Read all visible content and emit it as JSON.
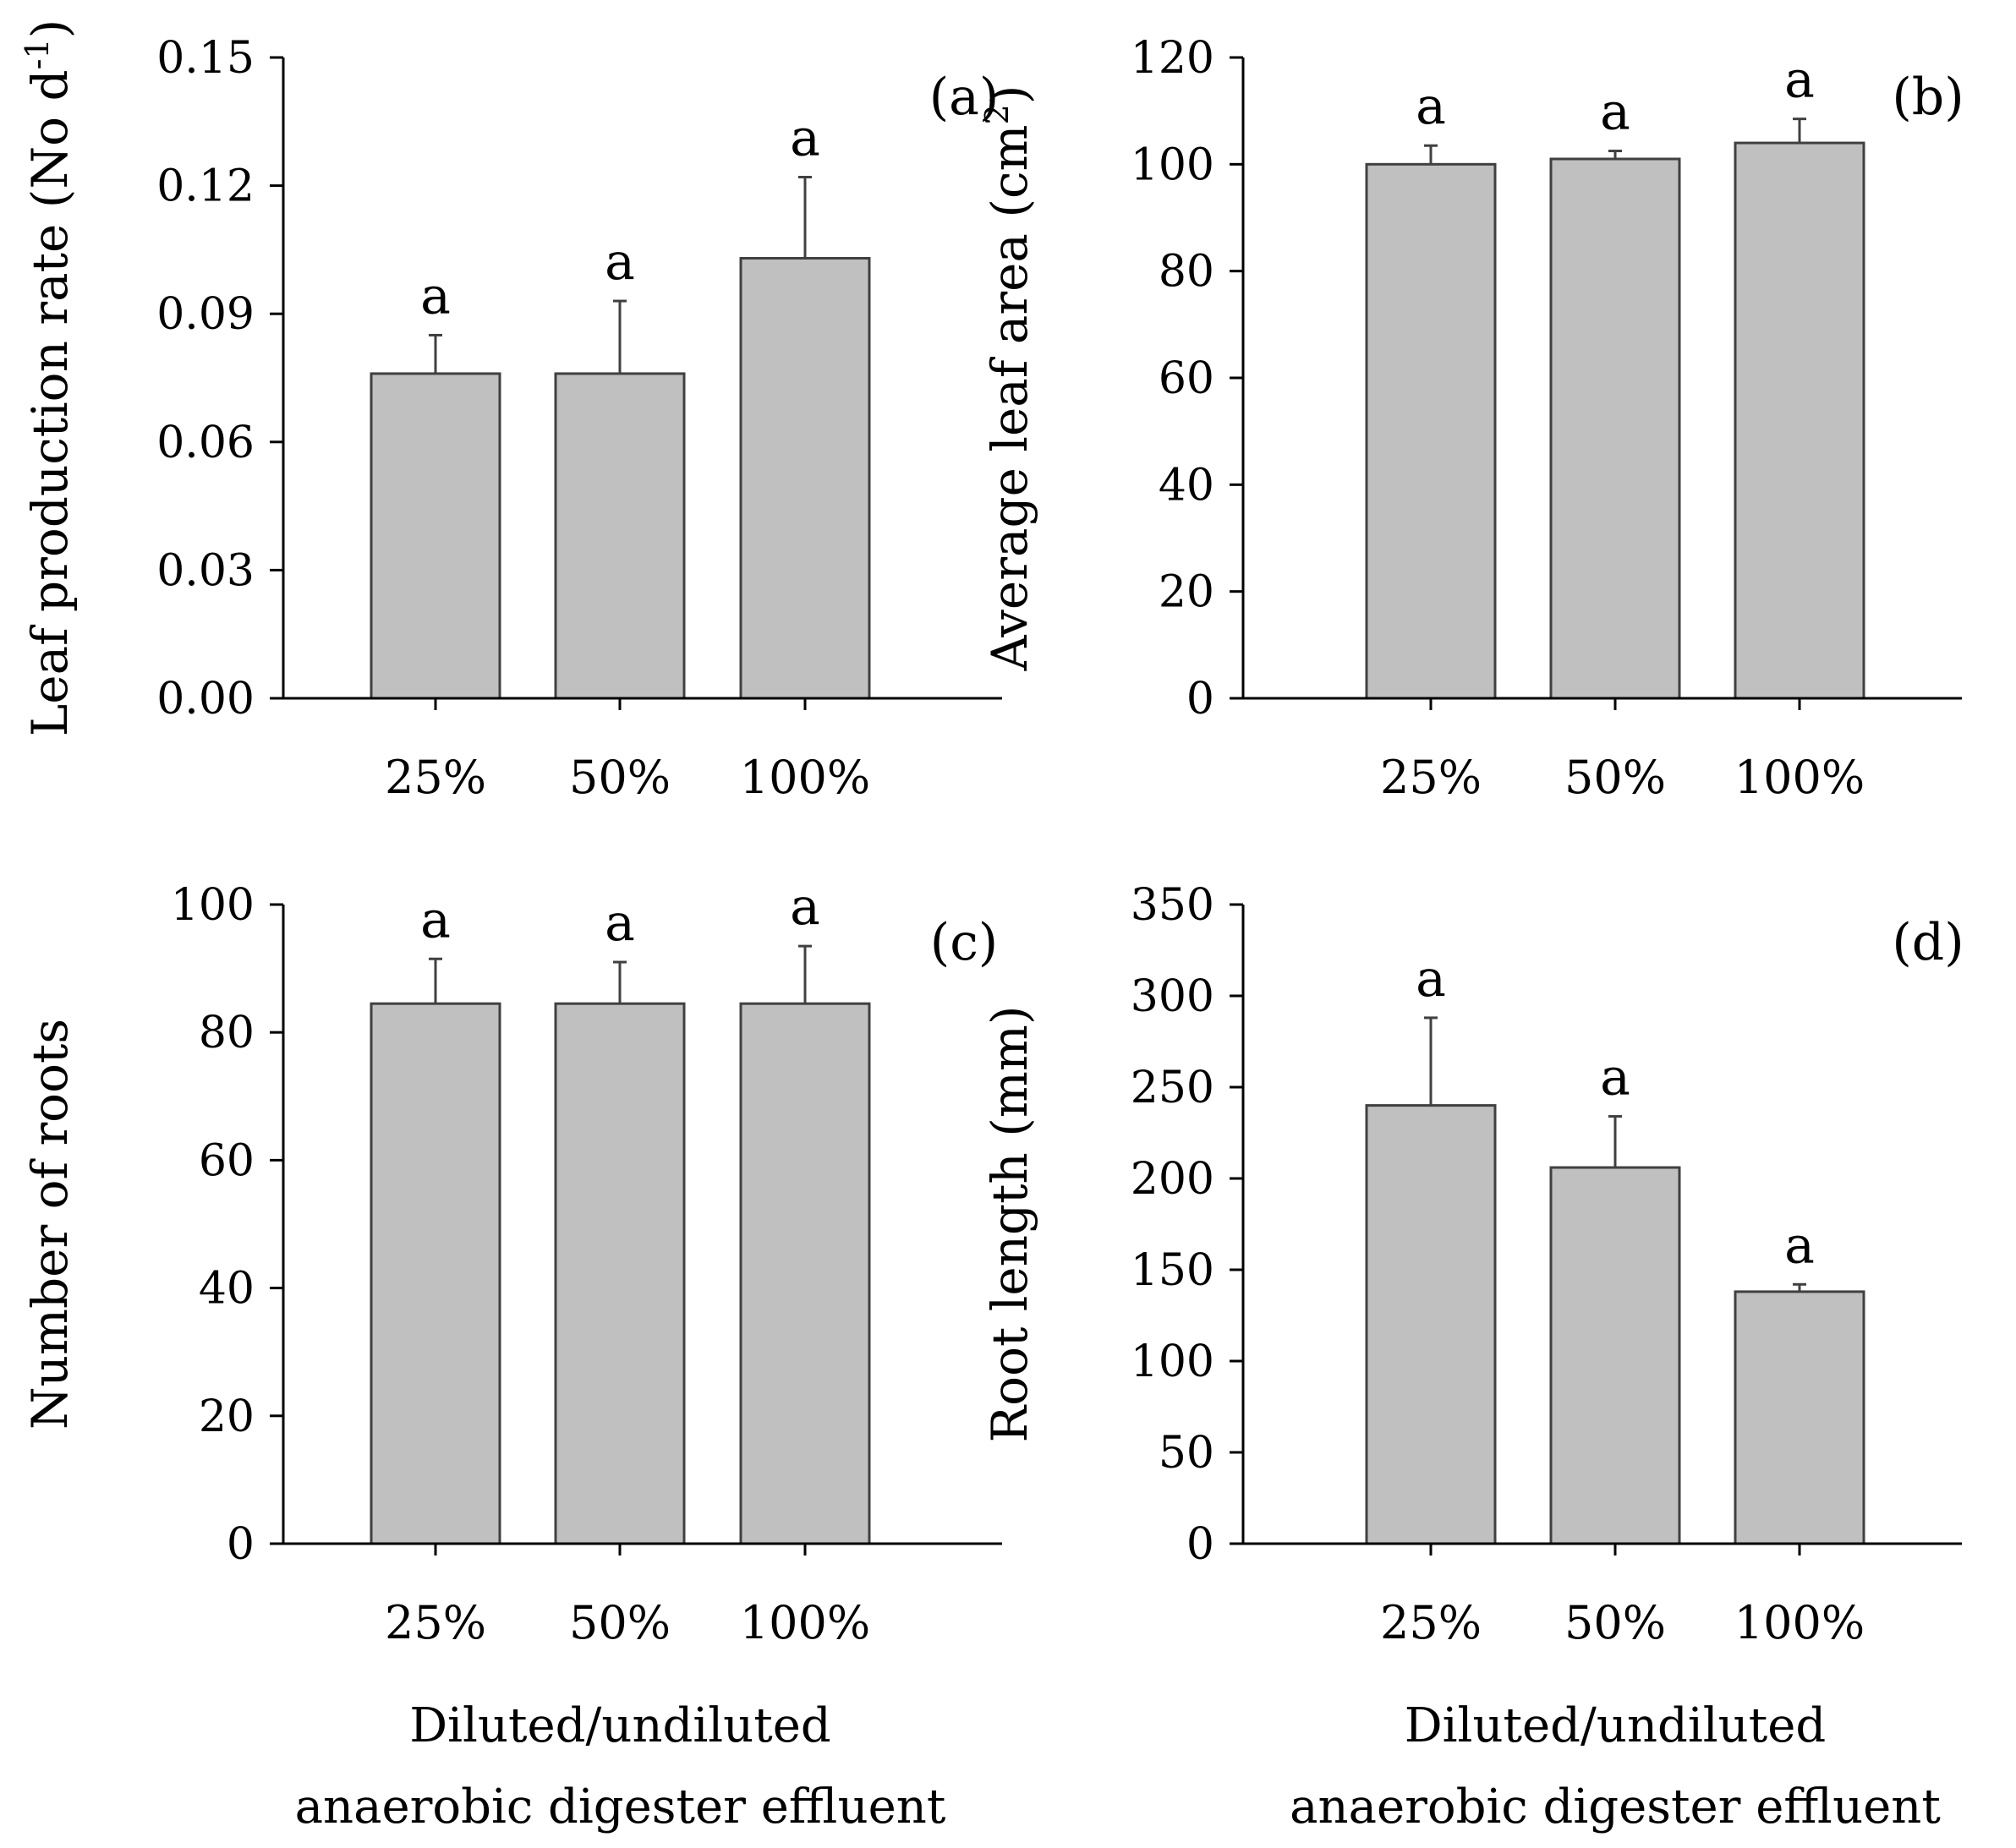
{
  "chart_data": [
    {
      "id": "a",
      "type": "bar",
      "panel_label": "(a)",
      "ylabel": "Leaf production rate (No d",
      "ylabel_sup": "-1",
      "ylabel_end": ")",
      "categories": [
        "25%",
        "50%",
        "100%"
      ],
      "values": [
        0.076,
        0.076,
        0.103
      ],
      "errors": [
        0.009,
        0.017,
        0.019
      ],
      "letters": [
        "a",
        "a",
        "a"
      ],
      "ylim": [
        0,
        0.15
      ],
      "yticks": [
        0,
        0.03,
        0.06,
        0.09,
        0.12,
        0.15
      ],
      "ytick_labels": [
        "0.00",
        "0.03",
        "0.06",
        "0.09",
        "0.12",
        "0.15"
      ],
      "xlabel": []
    },
    {
      "id": "b",
      "type": "bar",
      "panel_label": "(b)",
      "ylabel": "Average leaf area (cm",
      "ylabel_sup": "2",
      "ylabel_end": ")",
      "categories": [
        "25%",
        "50%",
        "100%"
      ],
      "values": [
        100,
        101,
        104
      ],
      "errors": [
        3.5,
        1.5,
        4.5
      ],
      "letters": [
        "a",
        "a",
        "a"
      ],
      "ylim": [
        0,
        120
      ],
      "yticks": [
        0,
        20,
        40,
        60,
        80,
        100,
        120
      ],
      "ytick_labels": [
        "0",
        "20",
        "40",
        "60",
        "80",
        "100",
        "120"
      ],
      "xlabel": []
    },
    {
      "id": "c",
      "type": "bar",
      "panel_label": "(c)",
      "ylabel": "Number of roots",
      "ylabel_sup": "",
      "ylabel_end": "",
      "categories": [
        "25%",
        "50%",
        "100%"
      ],
      "values": [
        84.5,
        84.5,
        84.5
      ],
      "errors": [
        7.0,
        6.5,
        9.0
      ],
      "letters": [
        "a",
        "a",
        "a"
      ],
      "ylim": [
        0,
        100
      ],
      "yticks": [
        0,
        20,
        40,
        60,
        80,
        100
      ],
      "ytick_labels": [
        "0",
        "20",
        "40",
        "60",
        "80",
        "100"
      ],
      "xlabel": [
        "Diluted/undiluted",
        "anaerobic digester effluent"
      ]
    },
    {
      "id": "d",
      "type": "bar",
      "panel_label": "(d)",
      "ylabel": "Root length (mm)",
      "ylabel_sup": "",
      "ylabel_end": "",
      "categories": [
        "25%",
        "50%",
        "100%"
      ],
      "values": [
        240,
        206,
        138
      ],
      "errors": [
        48,
        28,
        4
      ],
      "letters": [
        "a",
        "a",
        "a"
      ],
      "ylim": [
        0,
        350
      ],
      "yticks": [
        0,
        50,
        100,
        150,
        200,
        250,
        300,
        350
      ],
      "ytick_labels": [
        "0",
        "50",
        "100",
        "150",
        "200",
        "250",
        "300",
        "350"
      ],
      "xlabel": [
        "Diluted/undiluted",
        "anaerobic digester effluent"
      ]
    }
  ],
  "colors": {
    "bar_fill": "#c0c0c0",
    "bar_stroke": "#404040",
    "axis": "#000000"
  }
}
